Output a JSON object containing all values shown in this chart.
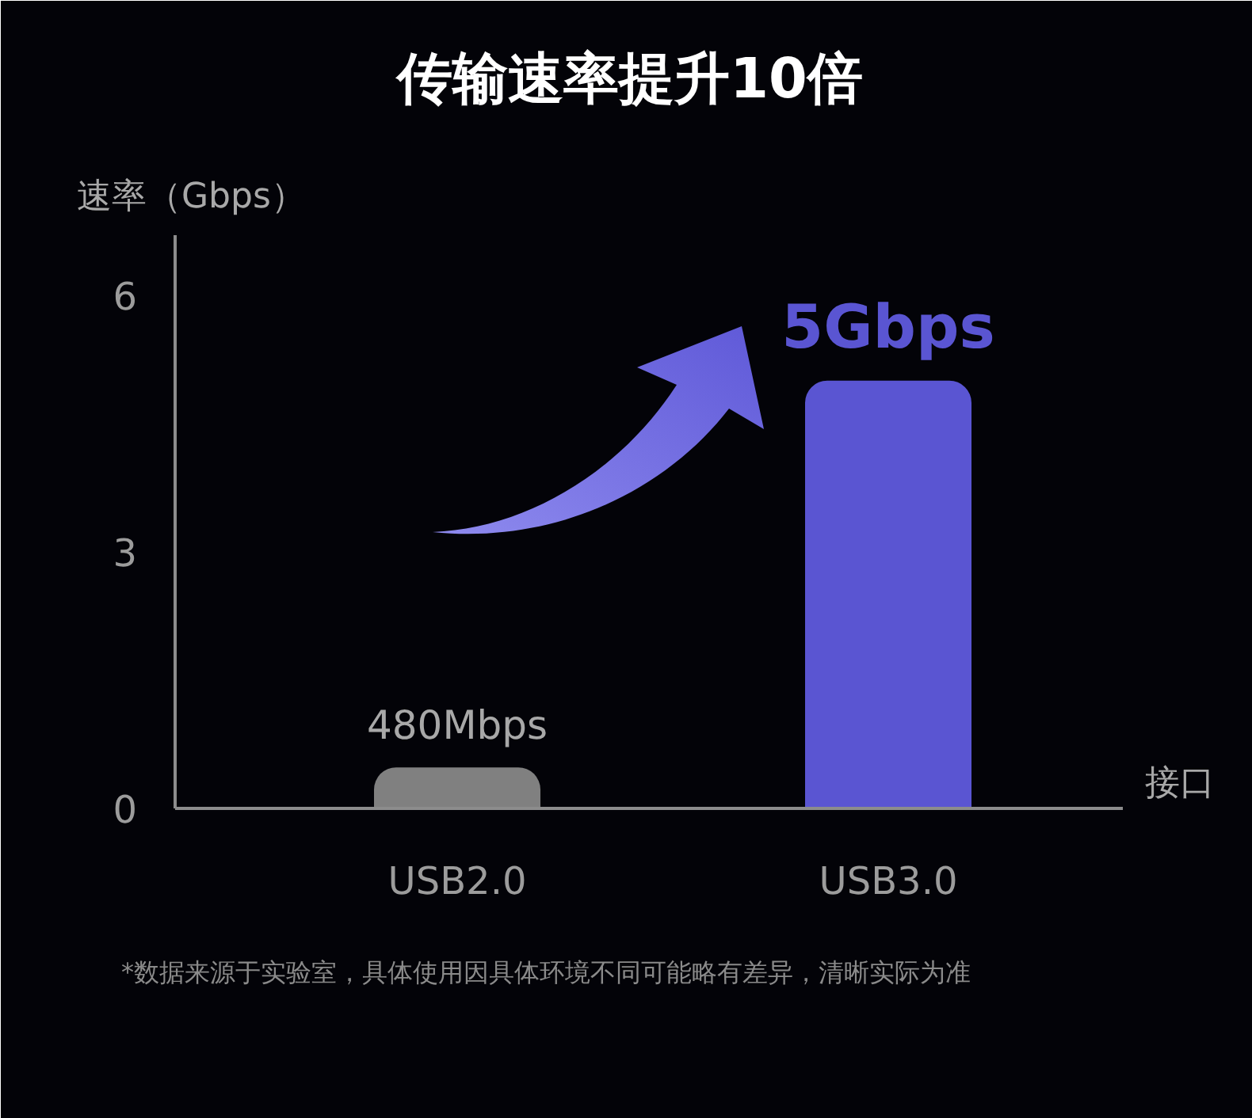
{
  "chart_data": {
    "type": "bar",
    "title": "传输速率提升10倍",
    "ylabel": "速率（Gbps）",
    "xlabel": "接口",
    "categories": [
      "USB2.0",
      "USB3.0"
    ],
    "values": [
      0.48,
      5
    ],
    "colors": [
      "#808080",
      "#5a55d2"
    ],
    "value_labels": [
      null,
      "5Gbps"
    ],
    "ylim": [
      0,
      6.7
    ],
    "yticks": [
      0,
      3,
      6
    ],
    "annotations": [
      {
        "text": "480Mbps",
        "x": "USB2.0",
        "y": 0.48
      },
      "*数据来源于实验室，具体使用因具体环境不同可能略有差异，清晰实际为准"
    ]
  }
}
